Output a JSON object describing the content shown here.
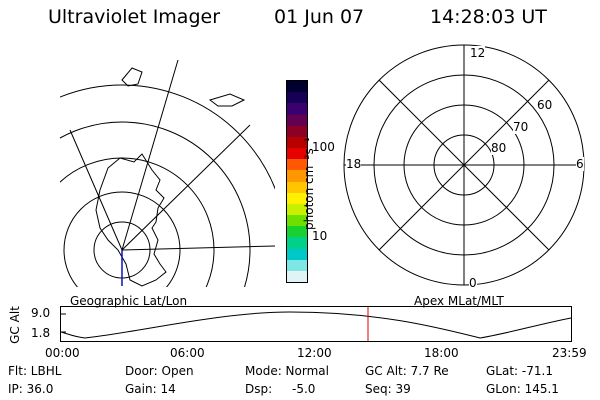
{
  "header": {
    "instrument": "Ultraviolet Imager",
    "date": "01 Jun 07",
    "time": "14:28:03 UT"
  },
  "colorbar": {
    "title": "photon cm⁻²s⁻¹",
    "ticks": [
      "100",
      "10"
    ],
    "colors": [
      "#000030",
      "#160055",
      "#3a006f",
      "#640052",
      "#8c0026",
      "#b70000",
      "#e60000",
      "#ff5800",
      "#ff9800",
      "#ffc600",
      "#ffef00",
      "#c8f000",
      "#6ee000",
      "#18d030",
      "#00d08a",
      "#00c8c8",
      "#7fe6e6",
      "#dff5f5"
    ]
  },
  "panels": {
    "left_label": "Geographic Lat/Lon",
    "right_label": "Apex MLat/MLT"
  },
  "polar": {
    "mlt": [
      "12",
      "18",
      "6",
      "0"
    ],
    "mlat": [
      "60",
      "70",
      "80"
    ]
  },
  "altitude": {
    "axis_label": "GC Alt",
    "yticks": [
      "9.0",
      "1.8"
    ],
    "xticks": [
      "00:00",
      "06:00",
      "12:00",
      "18:00",
      "23:59"
    ],
    "current_color": "#dd0000"
  },
  "status": {
    "flt": "Flt: LBHL",
    "ip": "IP: 36.0",
    "door": "Door: Open",
    "gain": "Gain: 14",
    "mode": "Mode: Normal",
    "dsp_label": "Dsp:",
    "dsp_value": "-5.0",
    "gc_alt": "GC Alt: 7.7 Re",
    "seq": "Seq: 39",
    "glat": "GLat: -71.1",
    "glon": "GLon: 145.1"
  }
}
